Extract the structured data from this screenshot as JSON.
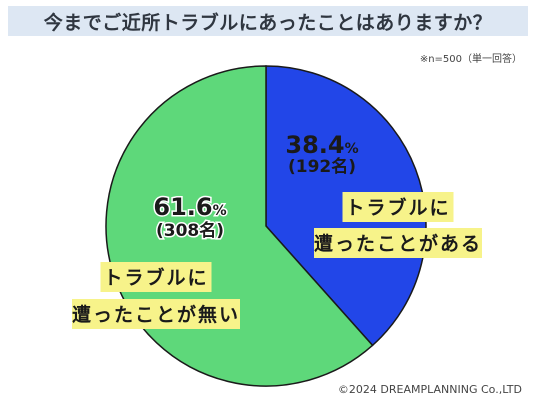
{
  "title": "今までご近所トラブルにあったことはありますか？",
  "note": "※n=500（単一回答）",
  "copyright": "©2024 DREAMPLANNING Co.,LTD",
  "colors": {
    "title_bg": "#dde7f3",
    "label_bg": "#f7f38a"
  },
  "chart_data": {
    "type": "pie",
    "title": "今までご近所トラブルにあったことはありますか？",
    "slices": [
      {
        "name": "トラブルに遭ったことがある",
        "label_lines": [
          "トラブルに",
          "遭ったことがある"
        ],
        "percent": 38.4,
        "percent_text": "38.4",
        "percent_unit": "%",
        "count_text": "(192名)",
        "color": "#2246e8"
      },
      {
        "name": "トラブルに遭ったことが無い",
        "label_lines": [
          "トラブルに",
          "遭ったことが無い"
        ],
        "percent": 61.6,
        "percent_text": "61.6",
        "percent_unit": "%",
        "count_text": "(308名)",
        "color": "#5ed87a"
      }
    ]
  }
}
